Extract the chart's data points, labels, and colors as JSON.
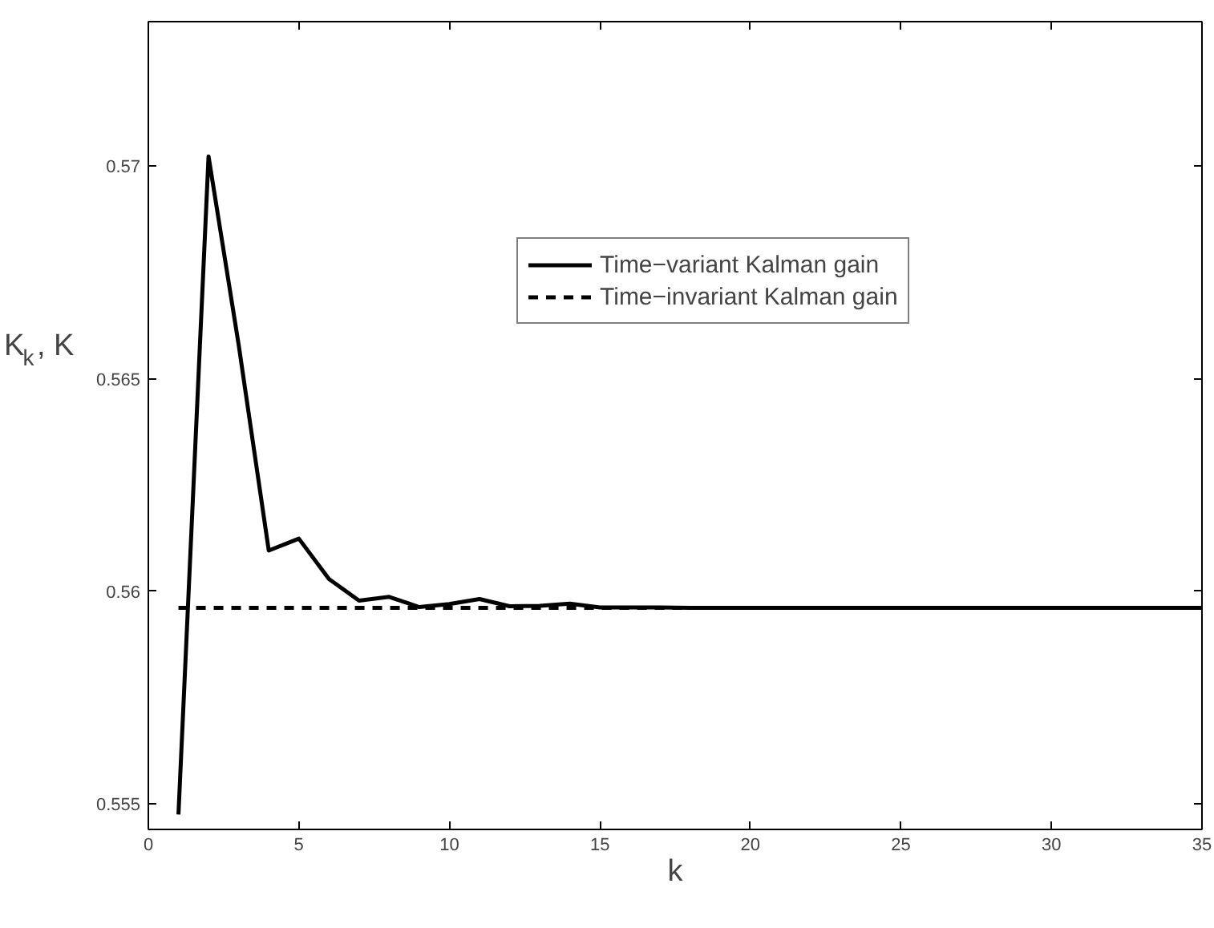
{
  "chart_data": {
    "type": "line",
    "xlabel": "k",
    "ylabel": "K$_{k}$, K",
    "x": [
      1,
      2,
      3,
      4,
      5,
      6,
      7,
      8,
      9,
      10,
      11,
      12,
      13,
      14,
      15,
      16,
      17,
      18,
      19,
      20,
      21,
      22,
      23,
      24,
      25,
      26,
      27,
      28,
      29,
      30,
      31,
      32,
      33,
      34,
      35
    ],
    "series": [
      {
        "name": "Time−variant Kalman gain",
        "color": "#000000",
        "line_style": "solid",
        "values": [
          0.55475,
          0.57023,
          0.5658,
          0.56096,
          0.56124,
          0.56029,
          0.55978,
          0.55987,
          0.55963,
          0.5597,
          0.55982,
          0.55965,
          0.55966,
          0.55971,
          0.55962,
          0.55962,
          0.55962,
          0.55961,
          0.55961,
          0.55961,
          0.55961,
          0.55961,
          0.55961,
          0.55961,
          0.55961,
          0.55961,
          0.55961,
          0.55961,
          0.55961,
          0.55961,
          0.55961,
          0.55961,
          0.55961,
          0.55961,
          0.55961
        ]
      },
      {
        "name": "Time−invariant Kalman gain",
        "color": "#000000",
        "line_style": "dashed",
        "values": [
          0.55961,
          0.55961,
          0.55961,
          0.55961,
          0.55961,
          0.55961,
          0.55961,
          0.55961,
          0.55961,
          0.55961,
          0.55961,
          0.55961,
          0.55961,
          0.55961,
          0.55961,
          0.55961,
          0.55961,
          0.55961,
          0.55961,
          0.55961,
          0.55961,
          0.55961,
          0.55961,
          0.55961,
          0.55961,
          0.55961,
          0.55961,
          0.55961,
          0.55961,
          0.55961,
          0.55961,
          0.55961,
          0.55961,
          0.55961,
          0.55961
        ]
      }
    ],
    "xlim": [
      0,
      35
    ],
    "ylim": [
      0.5544,
      0.5734
    ],
    "xticks": [
      0,
      5,
      10,
      15,
      20,
      25,
      30,
      35
    ],
    "yticks": [
      0.555,
      0.56,
      0.565,
      0.57
    ],
    "legend": "top right",
    "grid": false
  }
}
